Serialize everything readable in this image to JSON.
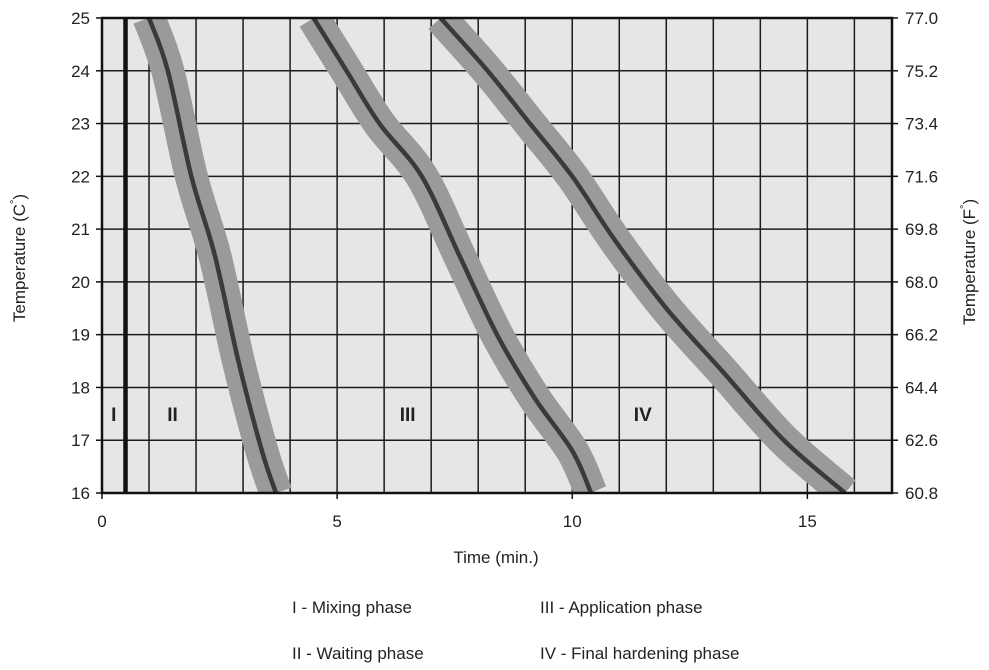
{
  "chart_data": {
    "type": "line",
    "xlabel": "Time (min.)",
    "ylabel_left": "Temperature (C",
    "ylabel_right": "Temperature (F",
    "ylabel_degree": "°",
    "ylabel_close": ")",
    "xlim": [
      0,
      16.8
    ],
    "ylim": [
      16,
      25
    ],
    "x_ticks": [
      0,
      5,
      10,
      15
    ],
    "x_tick_labels": [
      "0",
      "5",
      "10",
      "15"
    ],
    "y_ticks": [
      16,
      17,
      18,
      19,
      20,
      21,
      22,
      23,
      24,
      25
    ],
    "y_tick_labels": [
      "16",
      "17",
      "18",
      "19",
      "20",
      "21",
      "22",
      "23",
      "24",
      "25"
    ],
    "y_right_tick_labels": [
      "60.8",
      "62.6",
      "64.4",
      "66.2",
      "68.0",
      "69.8",
      "71.6",
      "73.4",
      "75.2",
      "77.0"
    ],
    "grid": true,
    "x_grid_step": 1,
    "y_grid_step": 1,
    "background": "#e6e6e6",
    "curve_color": "#3a3a3a",
    "band_color": "#9a9a9a",
    "band_halfwidth": 0.35,
    "phase_divider_x": 0.5,
    "phases": [
      {
        "label": "I",
        "x": 0.25,
        "y": 17.5
      },
      {
        "label": "II",
        "x": 1.5,
        "y": 17.5
      },
      {
        "label": "III",
        "x": 6.5,
        "y": 17.5
      },
      {
        "label": "IV",
        "x": 11.5,
        "y": 17.5
      }
    ],
    "series": [
      {
        "x": [
          1.0,
          1.4,
          1.9,
          2.4,
          2.9,
          3.4,
          3.7
        ],
        "y": [
          25,
          24,
          22,
          20.5,
          18.5,
          16.8,
          16
        ]
      },
      {
        "x": [
          4.5,
          5.2,
          5.9,
          6.8,
          7.6,
          8.4,
          9.2,
          10.0,
          10.4
        ],
        "y": [
          25,
          24,
          23,
          22,
          20.5,
          19,
          17.8,
          16.8,
          16
        ]
      },
      {
        "x": [
          7.2,
          8.2,
          9.1,
          10.0,
          10.9,
          12.0,
          13.2,
          14.5,
          15.8
        ],
        "y": [
          25,
          24,
          23,
          22,
          20.8,
          19.5,
          18.3,
          17,
          16
        ]
      }
    ]
  },
  "legend": [
    "I - Mixing phase",
    "III - Application phase",
    "II - Waiting phase",
    "IV - Final hardening phase"
  ]
}
